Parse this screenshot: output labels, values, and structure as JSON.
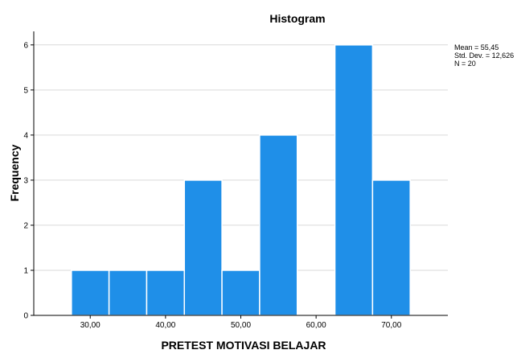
{
  "chart_data": {
    "type": "bar",
    "title": "Histogram",
    "xlabel": "PRETEST MOTIVASI BELAJAR",
    "ylabel": "Frequency",
    "xlim": [
      22.5,
      77.5
    ],
    "ylim": [
      0,
      6.3
    ],
    "bins": [
      {
        "start": 27.5,
        "end": 32.5,
        "value": 1
      },
      {
        "start": 32.5,
        "end": 37.5,
        "value": 1
      },
      {
        "start": 37.5,
        "end": 42.5,
        "value": 1
      },
      {
        "start": 42.5,
        "end": 47.5,
        "value": 3
      },
      {
        "start": 47.5,
        "end": 52.5,
        "value": 1
      },
      {
        "start": 52.5,
        "end": 57.5,
        "value": 4
      },
      {
        "start": 57.5,
        "end": 62.5,
        "value": 0
      },
      {
        "start": 62.5,
        "end": 67.5,
        "value": 6
      },
      {
        "start": 67.5,
        "end": 72.5,
        "value": 3
      }
    ],
    "x_ticks": [
      {
        "value": 30,
        "label": "30,00"
      },
      {
        "value": 40,
        "label": "40,00"
      },
      {
        "value": 50,
        "label": "50,00"
      },
      {
        "value": 60,
        "label": "60,00"
      },
      {
        "value": 70,
        "label": "70,00"
      }
    ],
    "y_ticks": [
      {
        "value": 0,
        "label": "0"
      },
      {
        "value": 1,
        "label": "1"
      },
      {
        "value": 2,
        "label": "2"
      },
      {
        "value": 3,
        "label": "3"
      },
      {
        "value": 4,
        "label": "4"
      },
      {
        "value": 5,
        "label": "5"
      },
      {
        "value": 6,
        "label": "6"
      }
    ],
    "grid": "horizontal",
    "legend": "right",
    "stats": {
      "mean": "Mean = 55,45",
      "std": "Std. Dev. = 12,626",
      "n": "N = 20"
    },
    "colors": {
      "bar": "#1f8fe8",
      "bar_edge": "#ffffff",
      "grid": "#d9d9d9",
      "axis": "#000000"
    }
  }
}
